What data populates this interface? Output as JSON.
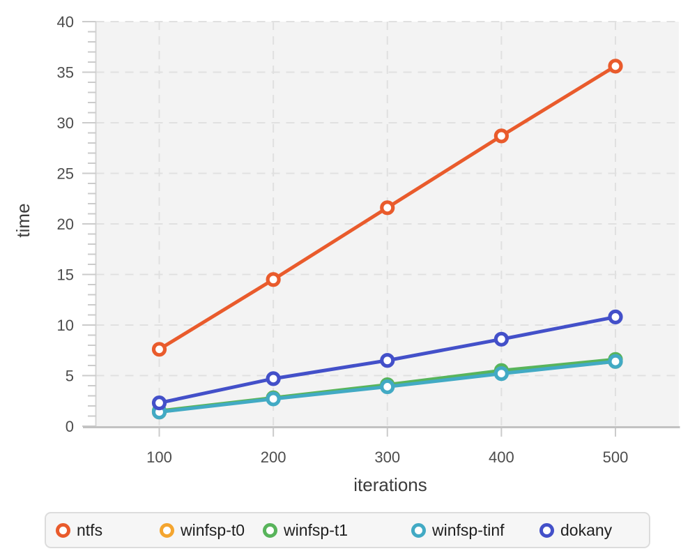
{
  "chart_data": {
    "type": "line",
    "title": "",
    "xlabel": "iterations",
    "ylabel": "time",
    "x": [
      100,
      200,
      300,
      400,
      500
    ],
    "xticks": [
      "100",
      "200",
      "300",
      "400",
      "500"
    ],
    "yticks": [
      0,
      5,
      10,
      15,
      20,
      25,
      30,
      35,
      40
    ],
    "ylim": [
      0,
      40
    ],
    "grid": true,
    "grid_style": "dashed",
    "legend_position": "bottom",
    "marker": "open-circle",
    "series": [
      {
        "name": "ntfs",
        "color": "#e95b2c",
        "values": [
          7.6,
          14.5,
          21.6,
          28.7,
          35.6
        ]
      },
      {
        "name": "winfsp-t0",
        "color": "#f4a52f",
        "values": [
          1.4,
          2.8,
          4.0,
          5.3,
          6.4
        ]
      },
      {
        "name": "winfsp-t1",
        "color": "#58b45b",
        "values": [
          1.5,
          2.8,
          4.1,
          5.5,
          6.6
        ]
      },
      {
        "name": "winfsp-tinf",
        "color": "#42aac4",
        "values": [
          1.4,
          2.7,
          3.9,
          5.2,
          6.4
        ]
      },
      {
        "name": "dokany",
        "color": "#4350c9",
        "values": [
          2.3,
          4.7,
          6.5,
          8.6,
          10.8
        ]
      }
    ]
  },
  "styles": {
    "plot_background": "#f3f3f3",
    "gridline_color": "#e0e0e0",
    "axis_line_color": "#c2c2c2",
    "left_edge_color": "#d5d5d5",
    "tick_color": "#cbcbcb",
    "tick_label_color": "#4c4c4c",
    "axis_title_color": "#3c3c3c",
    "legend_background": "#f6f6f6",
    "legend_border": "#dcdcdc",
    "legend_text_color": "#1f1f1f"
  }
}
